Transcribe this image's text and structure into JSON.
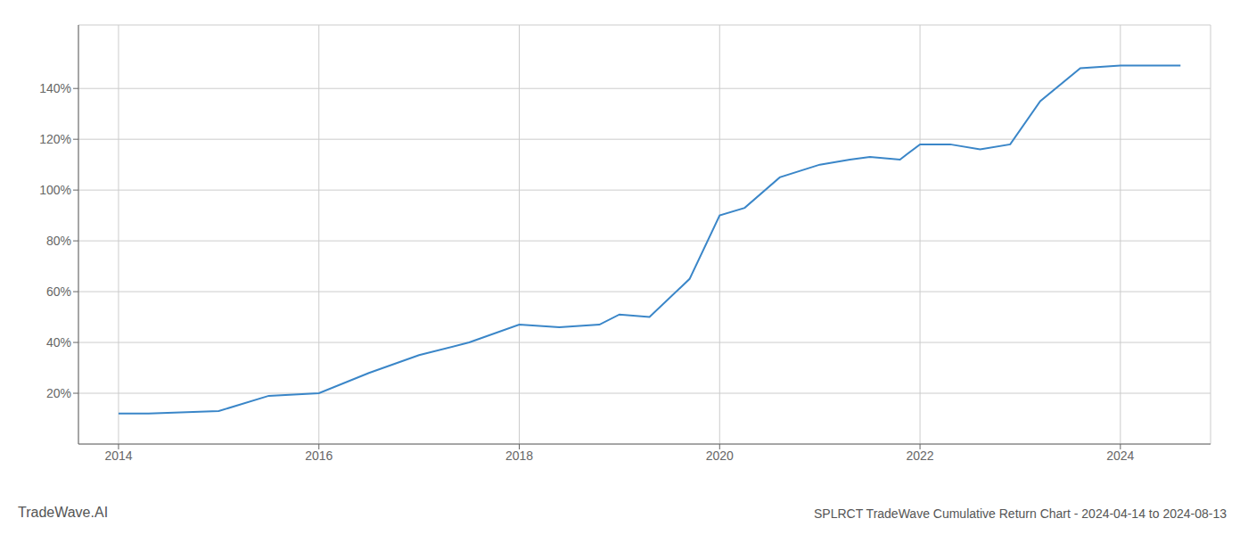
{
  "chart_data": {
    "type": "line",
    "title": "SPLRCT TradeWave Cumulative Return Chart - 2024-04-14 to 2024-08-13",
    "annotations": [
      "TradeWave.AI"
    ],
    "x": [
      2014.0,
      2014.3,
      2015.0,
      2015.5,
      2016.0,
      2016.5,
      2017.0,
      2017.5,
      2018.0,
      2018.4,
      2018.8,
      2019.0,
      2019.3,
      2019.7,
      2020.0,
      2020.25,
      2020.6,
      2021.0,
      2021.3,
      2021.5,
      2021.8,
      2022.0,
      2022.3,
      2022.6,
      2022.9,
      2023.2,
      2023.6,
      2024.0,
      2024.6
    ],
    "values": [
      12,
      12,
      13,
      19,
      20,
      28,
      35,
      40,
      47,
      46,
      47,
      51,
      50,
      65,
      90,
      93,
      105,
      110,
      112,
      113,
      112,
      118,
      118,
      116,
      118,
      135,
      148,
      149,
      149
    ],
    "color": "#3a86c8",
    "xlim": [
      2013.6,
      2024.9
    ],
    "xticks": [
      2014,
      2016,
      2018,
      2020,
      2022,
      2024
    ],
    "ylim": [
      0,
      165
    ],
    "yticks": [
      {
        "value": 20,
        "label": "20%"
      },
      {
        "value": 40,
        "label": "40%"
      },
      {
        "value": 60,
        "label": "60%"
      },
      {
        "value": 80,
        "label": "80%"
      },
      {
        "value": 100,
        "label": "100%"
      },
      {
        "value": 120,
        "label": "120%"
      },
      {
        "value": 140,
        "label": "140%"
      }
    ],
    "grid": true
  }
}
